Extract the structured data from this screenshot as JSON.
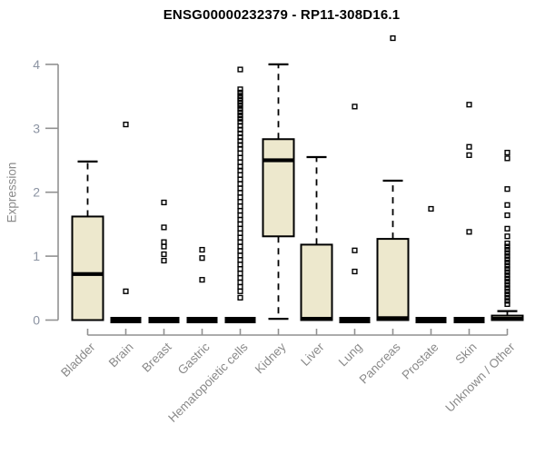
{
  "chart_data": {
    "type": "boxplot",
    "title": "ENSG00000232379 - RP11-308D16.1",
    "ylabel": "Expression",
    "xlabel": "",
    "ylim": [
      0,
      4
    ],
    "yticks": [
      0,
      1,
      2,
      3,
      4
    ],
    "grid": false,
    "legend": "none",
    "categories": [
      "Bladder",
      "Brain",
      "Breast",
      "Gastric",
      "Hematopoietic cells",
      "Kidney",
      "Liver",
      "Lung",
      "Pancreas",
      "Prostate",
      "Skin",
      "Unknown / Other"
    ],
    "series": [
      {
        "name": "Bladder",
        "whisker_low": 0,
        "q1": 0,
        "median": 0.72,
        "q3": 1.62,
        "whisker_high": 2.48,
        "outliers": []
      },
      {
        "name": "Brain",
        "whisker_low": 0,
        "q1": 0,
        "median": 0,
        "q3": 0,
        "whisker_high": 0,
        "outliers": [
          3.06,
          0.45
        ]
      },
      {
        "name": "Breast",
        "whisker_low": 0,
        "q1": 0,
        "median": 0,
        "q3": 0,
        "whisker_high": 0,
        "outliers": [
          1.84,
          1.45,
          1.22,
          1.15,
          1.03,
          0.93
        ]
      },
      {
        "name": "Gastric",
        "whisker_low": 0,
        "q1": 0,
        "median": 0,
        "q3": 0,
        "whisker_high": 0,
        "outliers": [
          1.1,
          0.97,
          0.63
        ]
      },
      {
        "name": "Hematopoietic cells",
        "whisker_low": 0,
        "q1": 0,
        "median": 0,
        "q3": 0,
        "whisker_high": 0,
        "outliers": [
          3.92,
          3.61,
          3.56,
          3.51,
          3.47,
          3.43,
          3.39,
          3.35,
          3.3,
          3.25,
          3.2,
          3.15,
          3.1,
          3.04,
          2.98,
          2.92,
          2.86,
          2.8,
          2.74,
          2.68,
          2.61,
          2.54,
          2.47,
          2.4,
          2.34,
          2.27,
          2.2,
          2.13,
          2.06,
          1.99,
          1.92,
          1.85,
          1.78,
          1.71,
          1.64,
          1.57,
          1.5,
          1.43,
          1.36,
          1.29,
          1.22,
          1.15,
          1.08,
          1.01,
          0.94,
          0.87,
          0.8,
          0.73,
          0.66,
          0.59,
          0.52,
          0.45,
          0.35
        ]
      },
      {
        "name": "Kidney",
        "whisker_low": 0.02,
        "q1": 1.31,
        "median": 2.5,
        "q3": 2.83,
        "whisker_high": 4.0,
        "outliers": []
      },
      {
        "name": "Liver",
        "whisker_low": 0,
        "q1": 0,
        "median": 0.02,
        "q3": 1.18,
        "whisker_high": 2.55,
        "outliers": []
      },
      {
        "name": "Lung",
        "whisker_low": 0,
        "q1": 0,
        "median": 0,
        "q3": 0,
        "whisker_high": 0,
        "outliers": [
          3.34,
          1.09,
          0.76
        ]
      },
      {
        "name": "Pancreas",
        "whisker_low": 0,
        "q1": 0,
        "median": 0.03,
        "q3": 1.27,
        "whisker_high": 2.18,
        "outliers": [
          4.41
        ]
      },
      {
        "name": "Prostate",
        "whisker_low": 0,
        "q1": 0,
        "median": 0,
        "q3": 0,
        "whisker_high": 0,
        "outliers": [
          1.74
        ]
      },
      {
        "name": "Skin",
        "whisker_low": 0,
        "q1": 0,
        "median": 0,
        "q3": 0,
        "whisker_high": 0,
        "outliers": [
          3.37,
          2.71,
          2.58,
          1.38
        ]
      },
      {
        "name": "Unknown / Other",
        "whisker_low": 0,
        "q1": 0,
        "median": 0.02,
        "q3": 0.07,
        "whisker_high": 0.14,
        "outliers": [
          2.62,
          2.53,
          2.05,
          1.8,
          1.64,
          1.43,
          1.31,
          1.2,
          1.15,
          1.1,
          1.05,
          1.0,
          0.95,
          0.9,
          0.85,
          0.8,
          0.75,
          0.7,
          0.65,
          0.6,
          0.55,
          0.5,
          0.45,
          0.4,
          0.35,
          0.3,
          0.25
        ]
      }
    ],
    "colors": {
      "box_fill": "#EDE8CD",
      "box_border": "#000000",
      "median": "#000000",
      "whisker": "#000000",
      "outlier": "#000000",
      "axis_line": "#919191",
      "y_tick_label": "#8b93a2",
      "category_label": "#8a8a8a",
      "title": "#000000"
    }
  }
}
